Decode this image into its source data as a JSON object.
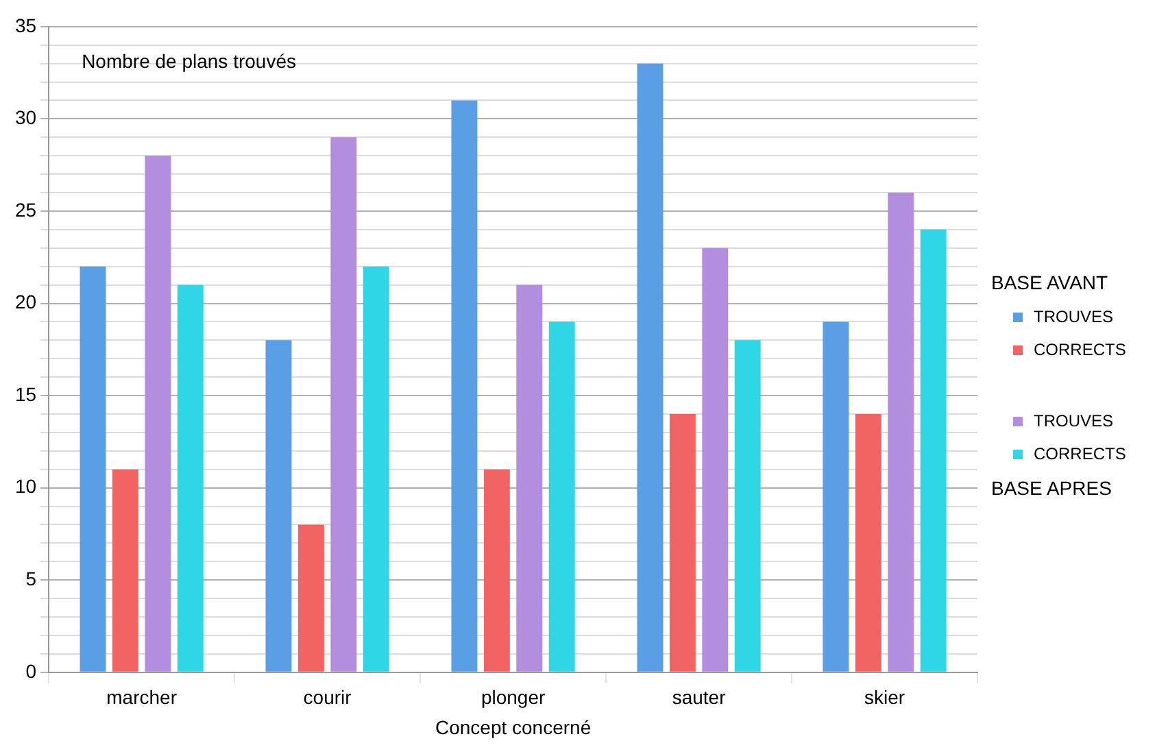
{
  "chart_data": {
    "type": "bar",
    "ylabel": "Nombre de plans trouvés",
    "xlabel": "Concept concerné",
    "legend_title": "BASE AVANT",
    "annotations": [
      "BASE APRES"
    ],
    "categories": [
      "marcher",
      "courir",
      "plonger",
      "sauter",
      "skier"
    ],
    "series": [
      {
        "name": "TROUVES",
        "color": "#5a9fe6",
        "values": [
          22,
          18,
          31,
          33,
          19
        ]
      },
      {
        "name": "CORRECTS",
        "color": "#f26464",
        "values": [
          11,
          8,
          11,
          14,
          14
        ]
      },
      {
        "name": "TROUVES",
        "color": "#b38ede",
        "values": [
          28,
          29,
          21,
          23,
          26
        ]
      },
      {
        "name": "CORRECTS",
        "color": "#2ed6e6",
        "values": [
          21,
          22,
          19,
          18,
          24
        ]
      }
    ],
    "ylim": [
      0,
      35
    ],
    "yticks": [
      0,
      {
        "value": 1,
        "label": null
      },
      {
        "value": 2,
        "label": null
      },
      {
        "value": 3,
        "label": null
      },
      {
        "value": 4,
        "label": null
      },
      5,
      {
        "value": 6,
        "label": null
      },
      {
        "value": 7,
        "label": null
      },
      {
        "value": 8,
        "label": null
      },
      {
        "value": 9,
        "label": null
      },
      10,
      {
        "value": 11,
        "label": null
      },
      {
        "value": 12,
        "label": null
      },
      {
        "value": 13,
        "label": null
      },
      {
        "value": 14,
        "label": null
      },
      15,
      {
        "value": 16,
        "label": null
      },
      {
        "value": 17,
        "label": null
      },
      {
        "value": 18,
        "label": null
      },
      {
        "value": 19,
        "label": null
      },
      20,
      {
        "value": 21,
        "label": null
      },
      {
        "value": 22,
        "label": null
      },
      {
        "value": 23,
        "label": null
      },
      {
        "value": 24,
        "label": null
      },
      25,
      {
        "value": 26,
        "label": null
      },
      {
        "value": 27,
        "label": null
      },
      {
        "value": 28,
        "label": null
      },
      {
        "value": 29,
        "label": null
      },
      30,
      {
        "value": 31,
        "label": null
      },
      {
        "value": 32,
        "label": null
      },
      {
        "value": 33,
        "label": null
      },
      {
        "value": 34,
        "label": null
      },
      35
    ],
    "grid": true,
    "legend": "right"
  }
}
